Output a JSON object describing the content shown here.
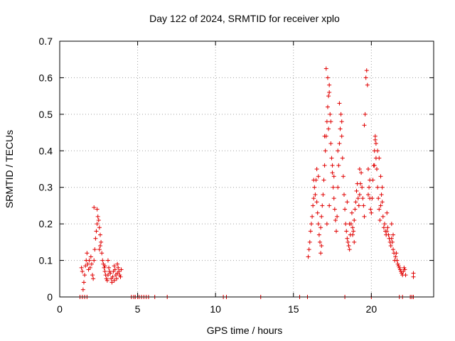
{
  "chart_data": {
    "type": "scatter",
    "title": "Day 122 of 2024, SRMTID for receiver xplo",
    "xlabel": "GPS time / hours",
    "ylabel": "SRMTID / TECUs",
    "xlim": [
      0,
      24
    ],
    "ylim": [
      0,
      0.7
    ],
    "xticks": [
      0,
      5,
      10,
      15,
      20
    ],
    "yticks": [
      0,
      0.1,
      0.2,
      0.3,
      0.4,
      0.5,
      0.6,
      0.7
    ],
    "xtick_labels": [
      "0",
      "5",
      "10",
      "15",
      "20"
    ],
    "ytick_labels": [
      "0",
      "0.1",
      "0.2",
      "0.3",
      "0.4",
      "0.5",
      "0.6",
      "0.7"
    ],
    "grid": true,
    "marker": "+",
    "color": "#e00000",
    "series": [
      {
        "name": "SRMTID",
        "points": [
          [
            1.3,
            0.0
          ],
          [
            1.45,
            0.0
          ],
          [
            1.6,
            0.0
          ],
          [
            1.75,
            0.0
          ],
          [
            4.6,
            0.0
          ],
          [
            4.75,
            0.0
          ],
          [
            4.85,
            0.0
          ],
          [
            5.0,
            0.0
          ],
          [
            5.1,
            0.0
          ],
          [
            5.25,
            0.0
          ],
          [
            5.4,
            0.0
          ],
          [
            5.55,
            0.0
          ],
          [
            5.7,
            0.0
          ],
          [
            6.1,
            0.0
          ],
          [
            6.9,
            0.0
          ],
          [
            10.5,
            0.0
          ],
          [
            10.7,
            0.0
          ],
          [
            12.9,
            0.0
          ],
          [
            15.4,
            0.0
          ],
          [
            15.9,
            0.0
          ],
          [
            18.3,
            0.0
          ],
          [
            20.0,
            0.0
          ],
          [
            21.8,
            0.0
          ],
          [
            22.0,
            0.0
          ],
          [
            22.5,
            0.0
          ],
          [
            22.6,
            0.0
          ],
          [
            22.7,
            0.0
          ],
          [
            1.4,
            0.08
          ],
          [
            1.45,
            0.07
          ],
          [
            1.5,
            0.02
          ],
          [
            1.55,
            0.04
          ],
          [
            1.6,
            0.06
          ],
          [
            1.65,
            0.085
          ],
          [
            1.7,
            0.1
          ],
          [
            1.75,
            0.12
          ],
          [
            1.8,
            0.09
          ],
          [
            1.85,
            0.075
          ],
          [
            1.9,
            0.1
          ],
          [
            1.95,
            0.08
          ],
          [
            2.0,
            0.11
          ],
          [
            2.05,
            0.09
          ],
          [
            2.1,
            0.06
          ],
          [
            2.15,
            0.05
          ],
          [
            2.2,
            0.1
          ],
          [
            2.25,
            0.13
          ],
          [
            2.3,
            0.16
          ],
          [
            2.35,
            0.18
          ],
          [
            2.4,
            0.2
          ],
          [
            2.45,
            0.22
          ],
          [
            2.5,
            0.21
          ],
          [
            2.55,
            0.19
          ],
          [
            2.6,
            0.17
          ],
          [
            2.2,
            0.245
          ],
          [
            2.4,
            0.24
          ],
          [
            2.65,
            0.15
          ],
          [
            2.7,
            0.12
          ],
          [
            2.75,
            0.1
          ],
          [
            2.8,
            0.09
          ],
          [
            2.85,
            0.08
          ],
          [
            2.9,
            0.07
          ],
          [
            2.95,
            0.06
          ],
          [
            3.0,
            0.05
          ],
          [
            3.05,
            0.045
          ],
          [
            3.1,
            0.06
          ],
          [
            3.15,
            0.08
          ],
          [
            3.2,
            0.07
          ],
          [
            3.25,
            0.065
          ],
          [
            3.3,
            0.05
          ],
          [
            3.35,
            0.04
          ],
          [
            3.4,
            0.055
          ],
          [
            3.45,
            0.07
          ],
          [
            3.5,
            0.085
          ],
          [
            3.55,
            0.075
          ],
          [
            3.6,
            0.06
          ],
          [
            3.65,
            0.05
          ],
          [
            3.7,
            0.065
          ],
          [
            3.75,
            0.08
          ],
          [
            3.8,
            0.07
          ],
          [
            3.85,
            0.06
          ],
          [
            3.9,
            0.055
          ],
          [
            3.95,
            0.075
          ],
          [
            3.5,
            0.045
          ],
          [
            3.7,
            0.09
          ],
          [
            2.6,
            0.14
          ],
          [
            2.55,
            0.13
          ],
          [
            2.9,
            0.085
          ],
          [
            3.1,
            0.1
          ],
          [
            15.95,
            0.11
          ],
          [
            16.0,
            0.13
          ],
          [
            16.05,
            0.15
          ],
          [
            16.1,
            0.18
          ],
          [
            16.15,
            0.2
          ],
          [
            16.2,
            0.22
          ],
          [
            16.25,
            0.25
          ],
          [
            16.3,
            0.27
          ],
          [
            16.35,
            0.3
          ],
          [
            16.4,
            0.28
          ],
          [
            16.45,
            0.32
          ],
          [
            16.5,
            0.26
          ],
          [
            16.55,
            0.23
          ],
          [
            16.6,
            0.2
          ],
          [
            16.65,
            0.17
          ],
          [
            16.7,
            0.15
          ],
          [
            16.75,
            0.19
          ],
          [
            16.8,
            0.22
          ],
          [
            16.85,
            0.25
          ],
          [
            16.9,
            0.28
          ],
          [
            16.95,
            0.32
          ],
          [
            17.0,
            0.36
          ],
          [
            17.05,
            0.4
          ],
          [
            17.1,
            0.44
          ],
          [
            17.15,
            0.48
          ],
          [
            17.2,
            0.52
          ],
          [
            17.25,
            0.55
          ],
          [
            17.3,
            0.58
          ],
          [
            17.35,
            0.5
          ],
          [
            17.4,
            0.42
          ],
          [
            17.45,
            0.38
          ],
          [
            17.5,
            0.34
          ],
          [
            17.55,
            0.3
          ],
          [
            17.6,
            0.27
          ],
          [
            17.65,
            0.24
          ],
          [
            17.7,
            0.21
          ],
          [
            17.75,
            0.18
          ],
          [
            17.8,
            0.22
          ],
          [
            17.85,
            0.3
          ],
          [
            17.9,
            0.36
          ],
          [
            17.95,
            0.42
          ],
          [
            18.0,
            0.46
          ],
          [
            18.05,
            0.5
          ],
          [
            18.1,
            0.44
          ],
          [
            18.15,
            0.38
          ],
          [
            18.2,
            0.33
          ],
          [
            18.25,
            0.28
          ],
          [
            18.3,
            0.24
          ],
          [
            18.35,
            0.2
          ],
          [
            18.4,
            0.18
          ],
          [
            18.45,
            0.16
          ],
          [
            18.5,
            0.15
          ],
          [
            18.55,
            0.14
          ],
          [
            18.6,
            0.13
          ],
          [
            18.65,
            0.17
          ],
          [
            18.7,
            0.2
          ],
          [
            18.75,
            0.23
          ],
          [
            18.8,
            0.19
          ],
          [
            18.85,
            0.18
          ],
          [
            18.9,
            0.21
          ],
          [
            18.95,
            0.24
          ],
          [
            19.0,
            0.26
          ],
          [
            19.05,
            0.29
          ],
          [
            19.1,
            0.31
          ],
          [
            19.15,
            0.27
          ],
          [
            19.2,
            0.25
          ],
          [
            19.25,
            0.28
          ],
          [
            19.3,
            0.31
          ],
          [
            19.35,
            0.34
          ],
          [
            19.4,
            0.3
          ],
          [
            19.45,
            0.27
          ],
          [
            19.5,
            0.25
          ],
          [
            19.55,
            0.47
          ],
          [
            19.6,
            0.5
          ],
          [
            19.65,
            0.6
          ],
          [
            19.7,
            0.62
          ],
          [
            19.75,
            0.58
          ],
          [
            19.8,
            0.35
          ],
          [
            19.85,
            0.3
          ],
          [
            19.9,
            0.27
          ],
          [
            19.95,
            0.24
          ],
          [
            20.0,
            0.23
          ],
          [
            20.05,
            0.27
          ],
          [
            20.1,
            0.32
          ],
          [
            20.15,
            0.36
          ],
          [
            20.2,
            0.4
          ],
          [
            20.25,
            0.43
          ],
          [
            20.3,
            0.38
          ],
          [
            20.35,
            0.35
          ],
          [
            20.4,
            0.3
          ],
          [
            20.45,
            0.27
          ],
          [
            20.5,
            0.24
          ],
          [
            20.55,
            0.21
          ],
          [
            20.6,
            0.25
          ],
          [
            20.65,
            0.28
          ],
          [
            20.7,
            0.26
          ],
          [
            20.75,
            0.22
          ],
          [
            20.8,
            0.19
          ],
          [
            20.85,
            0.2
          ],
          [
            20.9,
            0.18
          ],
          [
            20.95,
            0.17
          ],
          [
            21.0,
            0.18
          ],
          [
            21.05,
            0.19
          ],
          [
            21.1,
            0.17
          ],
          [
            21.15,
            0.16
          ],
          [
            21.2,
            0.15
          ],
          [
            21.25,
            0.14
          ],
          [
            21.3,
            0.16
          ],
          [
            21.35,
            0.15
          ],
          [
            21.4,
            0.13
          ],
          [
            21.45,
            0.12
          ],
          [
            21.5,
            0.1
          ],
          [
            21.55,
            0.11
          ],
          [
            21.6,
            0.12
          ],
          [
            21.65,
            0.1
          ],
          [
            21.7,
            0.09
          ],
          [
            21.75,
            0.085
          ],
          [
            21.8,
            0.08
          ],
          [
            21.85,
            0.075
          ],
          [
            21.9,
            0.07
          ],
          [
            21.95,
            0.065
          ],
          [
            22.0,
            0.06
          ],
          [
            22.05,
            0.07
          ],
          [
            22.1,
            0.08
          ],
          [
            22.15,
            0.075
          ],
          [
            22.2,
            0.06
          ],
          [
            22.7,
            0.065
          ],
          [
            22.7,
            0.055
          ],
          [
            17.1,
            0.625
          ],
          [
            17.2,
            0.6
          ],
          [
            17.3,
            0.56
          ],
          [
            17.0,
            0.44
          ],
          [
            17.4,
            0.48
          ],
          [
            17.25,
            0.46
          ],
          [
            17.5,
            0.36
          ],
          [
            17.95,
            0.53
          ],
          [
            18.1,
            0.48
          ],
          [
            17.85,
            0.4
          ],
          [
            16.8,
            0.14
          ],
          [
            16.5,
            0.35
          ],
          [
            16.6,
            0.33
          ],
          [
            16.3,
            0.32
          ],
          [
            16.75,
            0.12
          ],
          [
            17.15,
            0.2
          ],
          [
            17.3,
            0.25
          ],
          [
            17.6,
            0.33
          ],
          [
            18.45,
            0.26
          ],
          [
            18.6,
            0.2
          ],
          [
            18.8,
            0.17
          ],
          [
            18.9,
            0.15
          ],
          [
            19.25,
            0.35
          ],
          [
            19.55,
            0.22
          ],
          [
            19.8,
            0.28
          ],
          [
            19.9,
            0.32
          ],
          [
            20.2,
            0.36
          ],
          [
            20.25,
            0.44
          ],
          [
            20.3,
            0.42
          ],
          [
            20.4,
            0.4
          ],
          [
            20.5,
            0.38
          ],
          [
            20.6,
            0.33
          ],
          [
            20.7,
            0.3
          ],
          [
            21.0,
            0.23
          ],
          [
            21.3,
            0.2
          ],
          [
            21.4,
            0.17
          ]
        ]
      }
    ]
  }
}
